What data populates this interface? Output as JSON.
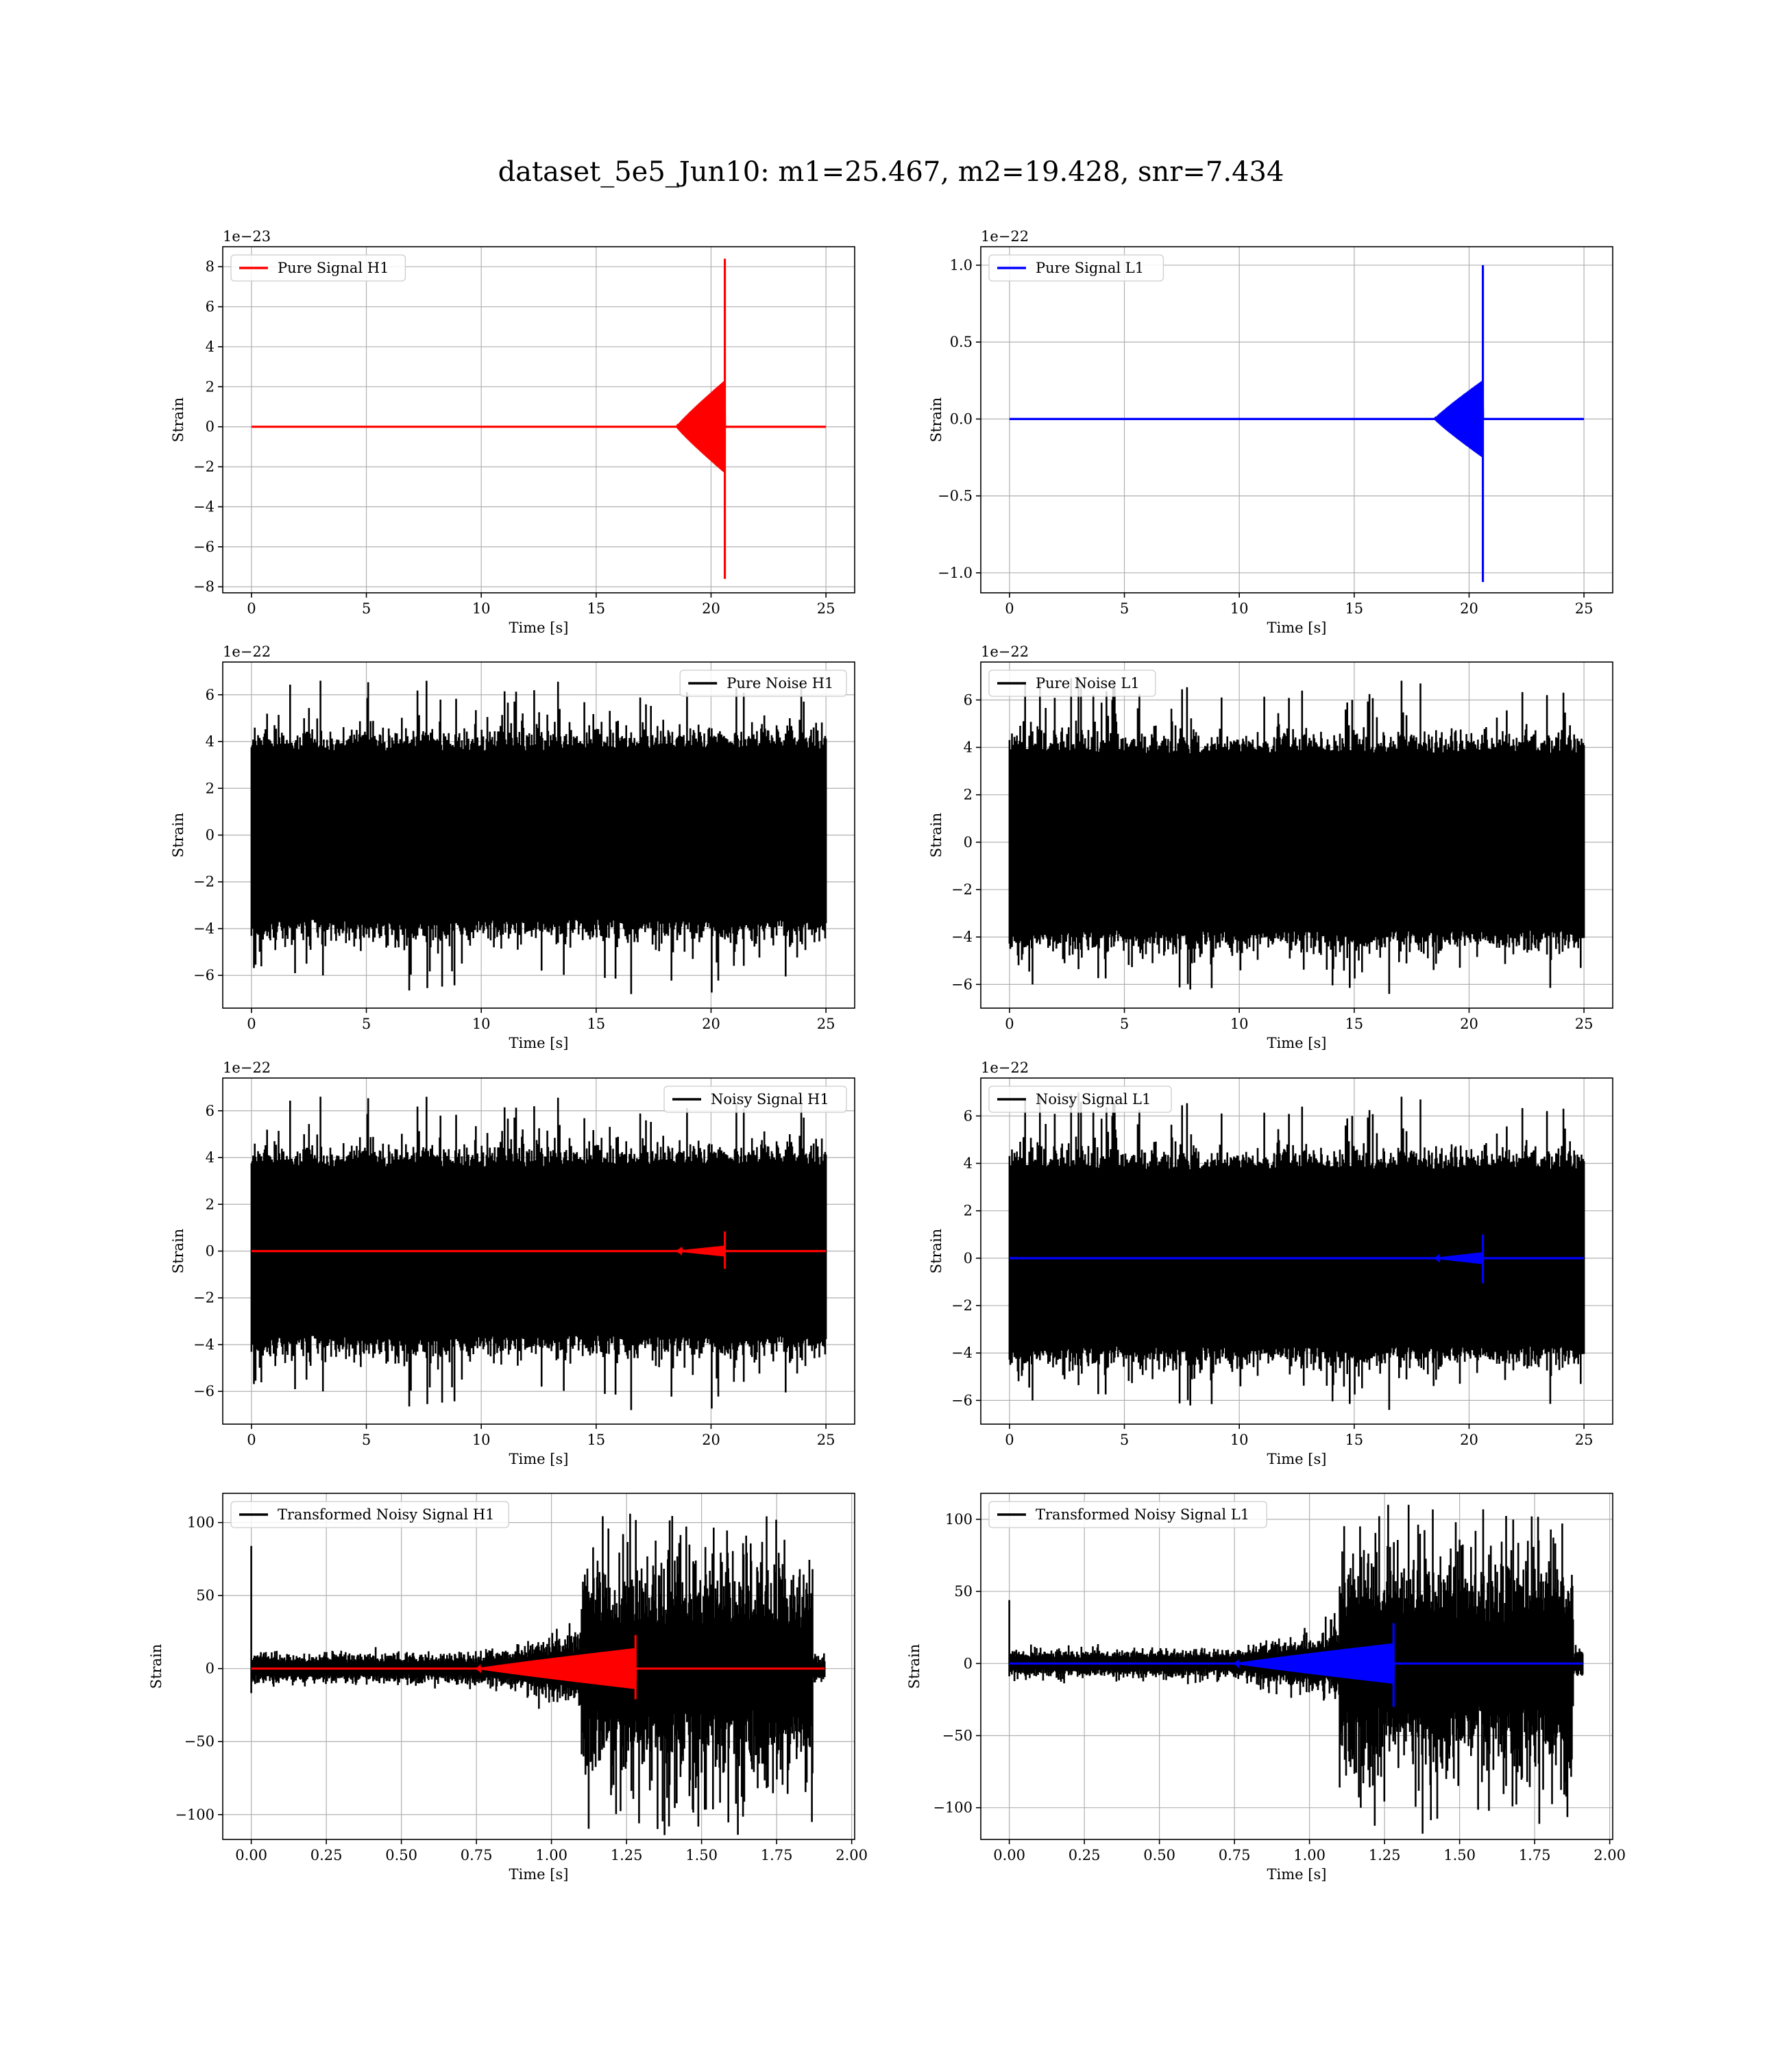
{
  "title": "dataset_5e5_Jun10: m1=25.467, m2=19.428, snr=7.434",
  "colors": {
    "h1_signal": "#ff0000",
    "l1_signal": "#0000ff",
    "noise": "#000000",
    "grid": "#b0b0b0"
  },
  "chart_data": [
    {
      "id": "pure-signal-h1",
      "type": "line",
      "xlabel": "Time [s]",
      "ylabel": "Strain",
      "offset_text": "1e−23",
      "xlim": [
        -1.25,
        26.25
      ],
      "ylim": [
        -8.3,
        9.0
      ],
      "xticks": [
        0,
        5,
        10,
        15,
        20,
        25
      ],
      "xtick_labels": [
        "0",
        "5",
        "10",
        "15",
        "20",
        "25"
      ],
      "yticks": [
        -8,
        -6,
        -4,
        -2,
        0,
        2,
        4,
        6,
        8
      ],
      "ytick_labels": [
        "−8",
        "−6",
        "−4",
        "−2",
        "0",
        "2",
        "4",
        "6",
        "8"
      ],
      "legend": {
        "placement": "upper-left"
      },
      "series": [
        {
          "name": "Pure Signal H1",
          "kind": "chirp",
          "color": "#ff0000",
          "x_start": 0,
          "x_end": 25,
          "chirp_start": 18.5,
          "peak_time": 20.6,
          "peak": 8.4,
          "trough": -7.6,
          "pre_merger_amp": 2.3
        }
      ]
    },
    {
      "id": "pure-signal-l1",
      "type": "line",
      "xlabel": "Time [s]",
      "ylabel": "Strain",
      "offset_text": "1e−22",
      "xlim": [
        -1.25,
        26.25
      ],
      "ylim": [
        -1.13,
        1.12
      ],
      "xticks": [
        0,
        5,
        10,
        15,
        20,
        25
      ],
      "xtick_labels": [
        "0",
        "5",
        "10",
        "15",
        "20",
        "25"
      ],
      "yticks": [
        -1.0,
        -0.5,
        0.0,
        0.5,
        1.0
      ],
      "ytick_labels": [
        "−1.0",
        "−0.5",
        "0.0",
        "0.5",
        "1.0"
      ],
      "legend": {
        "placement": "upper-left"
      },
      "series": [
        {
          "name": "Pure Signal L1",
          "kind": "chirp",
          "color": "#0000ff",
          "x_start": 0,
          "x_end": 25,
          "chirp_start": 18.5,
          "peak_time": 20.6,
          "peak": 1.0,
          "trough": -1.06,
          "pre_merger_amp": 0.25
        }
      ]
    },
    {
      "id": "pure-noise-h1",
      "type": "line",
      "xlabel": "Time [s]",
      "ylabel": "Strain",
      "offset_text": "1e−22",
      "xlim": [
        -1.25,
        26.25
      ],
      "ylim": [
        -7.4,
        7.4
      ],
      "xticks": [
        0,
        5,
        10,
        15,
        20,
        25
      ],
      "xtick_labels": [
        "0",
        "5",
        "10",
        "15",
        "20",
        "25"
      ],
      "yticks": [
        -6,
        -4,
        -2,
        0,
        2,
        4,
        6
      ],
      "ytick_labels": [
        "−6",
        "−4",
        "−2",
        "0",
        "2",
        "4",
        "6"
      ],
      "legend": {
        "placement": "upper-right"
      },
      "series": [
        {
          "name": "Pure Noise H1",
          "kind": "noise",
          "color": "#000000",
          "x_start": 0,
          "x_end": 25,
          "band": 3.6,
          "max": 6.6,
          "min": -6.8,
          "seed": 11
        }
      ]
    },
    {
      "id": "pure-noise-l1",
      "type": "line",
      "xlabel": "Time [s]",
      "ylabel": "Strain",
      "offset_text": "1e−22",
      "xlim": [
        -1.25,
        26.25
      ],
      "ylim": [
        -7.0,
        7.6
      ],
      "xticks": [
        0,
        5,
        10,
        15,
        20,
        25
      ],
      "xtick_labels": [
        "0",
        "5",
        "10",
        "15",
        "20",
        "25"
      ],
      "yticks": [
        -6,
        -4,
        -2,
        0,
        2,
        4,
        6
      ],
      "ytick_labels": [
        "−6",
        "−4",
        "−2",
        "0",
        "2",
        "4",
        "6"
      ],
      "legend": {
        "placement": "upper-left"
      },
      "series": [
        {
          "name": "Pure Noise L1",
          "kind": "noise",
          "color": "#000000",
          "x_start": 0,
          "x_end": 25,
          "band": 3.7,
          "max": 7.0,
          "min": -6.4,
          "seed": 23
        }
      ]
    },
    {
      "id": "noisy-signal-h1",
      "type": "line",
      "xlabel": "Time [s]",
      "ylabel": "Strain",
      "offset_text": "1e−22",
      "xlim": [
        -1.25,
        26.25
      ],
      "ylim": [
        -7.4,
        7.4
      ],
      "xticks": [
        0,
        5,
        10,
        15,
        20,
        25
      ],
      "xtick_labels": [
        "0",
        "5",
        "10",
        "15",
        "20",
        "25"
      ],
      "yticks": [
        -6,
        -4,
        -2,
        0,
        2,
        4,
        6
      ],
      "ytick_labels": [
        "−6",
        "−4",
        "−2",
        "0",
        "2",
        "4",
        "6"
      ],
      "legend": {
        "placement": "upper-right"
      },
      "series": [
        {
          "name": "Noisy Signal H1",
          "kind": "noise",
          "color": "#000000",
          "x_start": 0,
          "x_end": 25,
          "band": 3.6,
          "max": 6.6,
          "min": -6.8,
          "seed": 11
        },
        {
          "name": "",
          "kind": "chirp",
          "color": "#ff0000",
          "x_start": 0,
          "x_end": 25,
          "chirp_start": 18.5,
          "peak_time": 20.6,
          "peak": 0.84,
          "trough": -0.76,
          "pre_merger_amp": 0.23
        }
      ]
    },
    {
      "id": "noisy-signal-l1",
      "type": "line",
      "xlabel": "Time [s]",
      "ylabel": "Strain",
      "offset_text": "1e−22",
      "xlim": [
        -1.25,
        26.25
      ],
      "ylim": [
        -7.0,
        7.6
      ],
      "xticks": [
        0,
        5,
        10,
        15,
        20,
        25
      ],
      "xtick_labels": [
        "0",
        "5",
        "10",
        "15",
        "20",
        "25"
      ],
      "yticks": [
        -6,
        -4,
        -2,
        0,
        2,
        4,
        6
      ],
      "ytick_labels": [
        "−6",
        "−4",
        "−2",
        "0",
        "2",
        "4",
        "6"
      ],
      "legend": {
        "placement": "upper-left"
      },
      "series": [
        {
          "name": "Noisy Signal L1",
          "kind": "noise",
          "color": "#000000",
          "x_start": 0,
          "x_end": 25,
          "band": 3.7,
          "max": 7.0,
          "min": -6.4,
          "seed": 23
        },
        {
          "name": "",
          "kind": "chirp",
          "color": "#0000ff",
          "x_start": 0,
          "x_end": 25,
          "chirp_start": 18.5,
          "peak_time": 20.6,
          "peak": 1.0,
          "trough": -1.06,
          "pre_merger_amp": 0.25
        }
      ]
    },
    {
      "id": "transformed-noisy-signal-h1",
      "type": "line",
      "xlabel": "Time [s]",
      "ylabel": "Strain",
      "offset_text": "",
      "xlim": [
        -0.095,
        2.01
      ],
      "ylim": [
        -117,
        120
      ],
      "xticks": [
        0,
        0.25,
        0.5,
        0.75,
        1.0,
        1.25,
        1.5,
        1.75,
        2.0
      ],
      "xtick_labels": [
        "0.00",
        "0.25",
        "0.50",
        "0.75",
        "1.00",
        "1.25",
        "1.50",
        "1.75",
        "2.00"
      ],
      "yticks": [
        -100,
        -50,
        0,
        50,
        100
      ],
      "ytick_labels": [
        "−100",
        "−50",
        "0",
        "50",
        "100"
      ],
      "legend": {
        "placement": "upper-left"
      },
      "series": [
        {
          "name": "Transformed Noisy Signal H1",
          "kind": "whitened",
          "color": "#000000",
          "x_start": 0,
          "x_end": 1.91,
          "low_band": 7,
          "high_start": 1.1,
          "high_end": 1.87,
          "high_band": 50,
          "max": 106,
          "min": -114,
          "spike": 84,
          "seed": 37
        },
        {
          "name": "",
          "kind": "chirp",
          "color": "#ff0000",
          "x_start": 0,
          "x_end": 1.91,
          "chirp_start": 0.75,
          "peak_time": 1.28,
          "peak": 23,
          "trough": -21,
          "pre_merger_amp": 14
        }
      ]
    },
    {
      "id": "transformed-noisy-signal-l1",
      "type": "line",
      "xlabel": "Time [s]",
      "ylabel": "Strain",
      "offset_text": "",
      "xlim": [
        -0.095,
        2.01
      ],
      "ylim": [
        -122,
        118
      ],
      "xticks": [
        0,
        0.25,
        0.5,
        0.75,
        1.0,
        1.25,
        1.5,
        1.75,
        2.0
      ],
      "xtick_labels": [
        "0.00",
        "0.25",
        "0.50",
        "0.75",
        "1.00",
        "1.25",
        "1.50",
        "1.75",
        "2.00"
      ],
      "yticks": [
        -100,
        -50,
        0,
        50,
        100
      ],
      "ytick_labels": [
        "−100",
        "−50",
        "0",
        "50",
        "100"
      ],
      "legend": {
        "placement": "upper-left"
      },
      "series": [
        {
          "name": "Transformed Noisy Signal L1",
          "kind": "whitened",
          "color": "#000000",
          "x_start": 0,
          "x_end": 1.91,
          "low_band": 7,
          "high_start": 1.1,
          "high_end": 1.88,
          "high_band": 50,
          "max": 110,
          "min": -118,
          "spike": 44,
          "seed": 53
        },
        {
          "name": "",
          "kind": "chirp",
          "color": "#0000ff",
          "x_start": 0,
          "x_end": 1.91,
          "chirp_start": 0.75,
          "peak_time": 1.28,
          "peak": 28,
          "trough": -30,
          "pre_merger_amp": 14
        }
      ]
    }
  ]
}
